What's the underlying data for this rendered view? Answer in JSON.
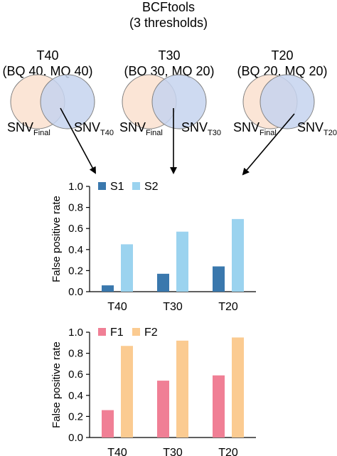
{
  "header": {
    "title_line1": "BCFtools",
    "title_line2": "(3 thresholds)"
  },
  "venns": [
    {
      "name": "T40",
      "params": "(BQ 40, MQ 40)",
      "left_label": "SNV",
      "left_sub": "Final",
      "right_label": "SNV",
      "right_sub": "T40"
    },
    {
      "name": "T30",
      "params": "(BQ 30, MQ 20)",
      "left_label": "SNV",
      "left_sub": "Final",
      "right_label": "SNV",
      "right_sub": "T30"
    },
    {
      "name": "T20",
      "params": "(BQ 20, MQ 20)",
      "left_label": "SNV",
      "left_sub": "Final",
      "right_label": "SNV",
      "right_sub": "T20"
    }
  ],
  "colors": {
    "venn_left": "#fbe5d6",
    "venn_right": "#c5d3ee",
    "venn_overlap": "#c9bcb9",
    "S1": "#3a78ad",
    "S2": "#9bd3ef",
    "F1": "#f07f95",
    "F2": "#fbcb91",
    "axis": "#000000"
  },
  "chart_data": [
    {
      "type": "bar",
      "title": "",
      "xlabel": "",
      "ylabel": "False positive rate",
      "ylim": [
        0,
        1.0
      ],
      "yticks": [
        "0.0",
        "0.2",
        "0.4",
        "0.6",
        "0.8",
        "1.0"
      ],
      "categories": [
        "T40",
        "T30",
        "T20"
      ],
      "series": [
        {
          "name": "S1",
          "values": [
            0.06,
            0.17,
            0.24
          ]
        },
        {
          "name": "S2",
          "values": [
            0.45,
            0.57,
            0.69
          ]
        }
      ],
      "legend": "top-left"
    },
    {
      "type": "bar",
      "title": "",
      "xlabel": "",
      "ylabel": "False positive rate",
      "ylim": [
        0,
        1.0
      ],
      "yticks": [
        "0.0",
        "0.2",
        "0.4",
        "0.6",
        "0.8",
        "1.0"
      ],
      "categories": [
        "T40",
        "T30",
        "T20"
      ],
      "series": [
        {
          "name": "F1",
          "values": [
            0.26,
            0.54,
            0.59
          ]
        },
        {
          "name": "F2",
          "values": [
            0.87,
            0.92,
            0.95
          ]
        }
      ],
      "legend": "top-left"
    }
  ]
}
